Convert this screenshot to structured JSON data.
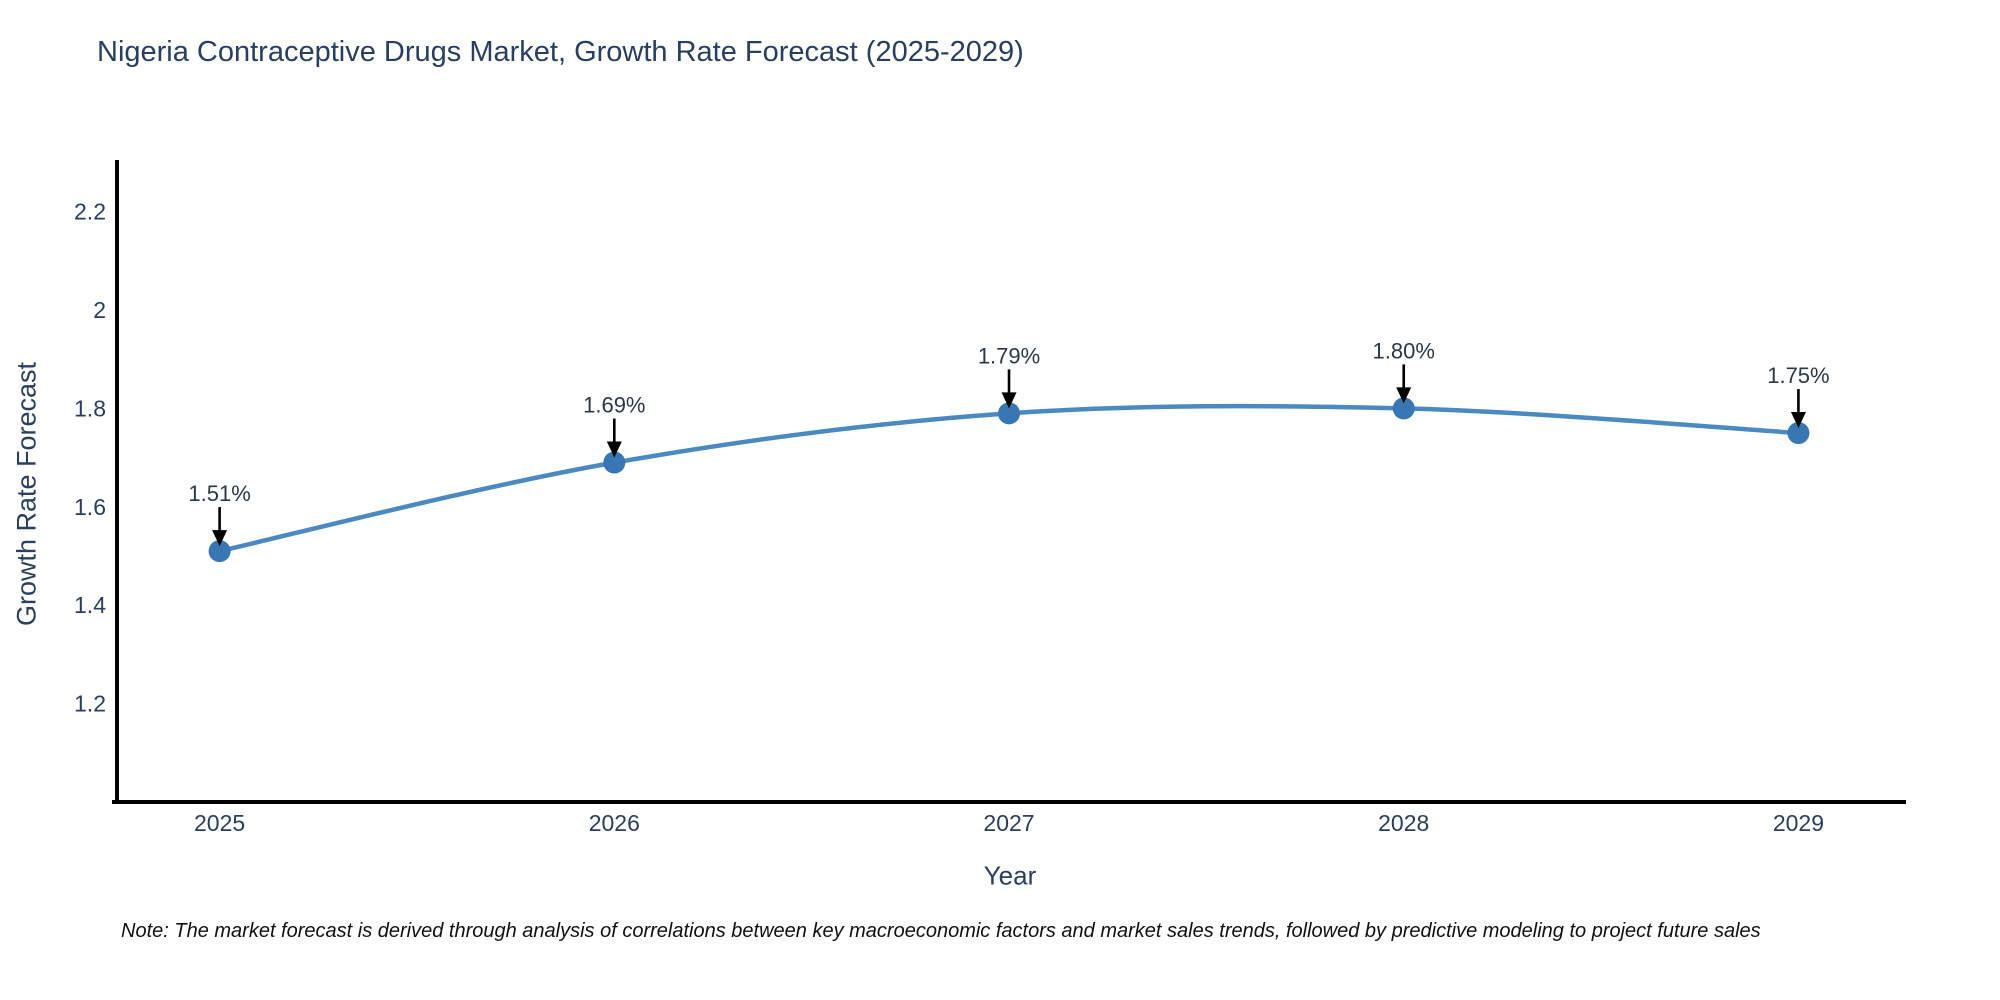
{
  "title": "Nigeria Contraceptive Drugs Market, Growth Rate Forecast (2025-2029)",
  "note": "Note: The market forecast is derived through analysis of correlations between key macroeconomic factors and market sales trends, followed by predictive modeling to project future sales",
  "chart_data": {
    "type": "line",
    "title": "Nigeria Contraceptive Drugs Market, Growth Rate Forecast (2025-2029)",
    "xlabel": "Year",
    "ylabel": "Growth Rate Forecast",
    "x": [
      2025,
      2026,
      2027,
      2028,
      2029
    ],
    "values": [
      1.51,
      1.69,
      1.79,
      1.8,
      1.75
    ],
    "point_labels": [
      "1.51%",
      "1.69%",
      "1.79%",
      "1.80%",
      "1.75%"
    ],
    "xtick_labels": [
      "2025",
      "2026",
      "2027",
      "2028",
      "2029"
    ],
    "yticks": [
      1.2,
      1.4,
      1.6,
      1.8,
      2,
      2.2
    ],
    "ytick_labels": [
      "1.2",
      "1.4",
      "1.6",
      "1.8",
      "2",
      "2.2"
    ],
    "xlim": [
      2024.735,
      2029.27
    ],
    "ylim": [
      1.0,
      2.305
    ],
    "grid": false,
    "legend": null,
    "line_color": "#4a89c2",
    "marker_color": "#3977b4",
    "axis_color": "#000000",
    "arrow_color": "#000000",
    "text_color": "#2a3f5f",
    "annotation_color": "#2b3947"
  }
}
